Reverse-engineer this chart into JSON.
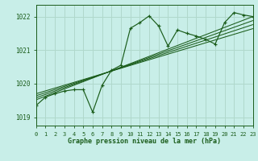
{
  "title": "Graphe pression niveau de la mer (hPa)",
  "bg_color": "#c8eee8",
  "grid_color": "#b0d8cc",
  "line_color": "#1a5c1a",
  "x_min": 0,
  "x_max": 23,
  "y_min": 1018.75,
  "y_max": 1022.35,
  "y_ticks": [
    1019,
    1020,
    1021,
    1022
  ],
  "x_ticks": [
    0,
    1,
    2,
    3,
    4,
    5,
    6,
    7,
    8,
    9,
    10,
    11,
    12,
    13,
    14,
    15,
    16,
    17,
    18,
    19,
    20,
    21,
    22,
    23
  ],
  "main_series": [
    [
      0,
      1019.35
    ],
    [
      1,
      1019.6
    ],
    [
      2,
      1019.7
    ],
    [
      3,
      1019.78
    ],
    [
      4,
      1019.82
    ],
    [
      5,
      1019.82
    ],
    [
      6,
      1019.15
    ],
    [
      7,
      1019.95
    ],
    [
      8,
      1020.4
    ],
    [
      9,
      1020.55
    ],
    [
      10,
      1021.65
    ],
    [
      11,
      1021.82
    ],
    [
      12,
      1022.02
    ],
    [
      13,
      1021.72
    ],
    [
      14,
      1021.12
    ],
    [
      15,
      1021.6
    ],
    [
      16,
      1021.5
    ],
    [
      17,
      1021.42
    ],
    [
      18,
      1021.32
    ],
    [
      19,
      1021.18
    ],
    [
      20,
      1021.82
    ],
    [
      21,
      1022.12
    ],
    [
      22,
      1022.05
    ],
    [
      23,
      1022.0
    ]
  ],
  "trend_lines": [
    [
      [
        0,
        1019.52
      ],
      [
        23,
        1022.0
      ]
    ],
    [
      [
        0,
        1019.58
      ],
      [
        23,
        1021.88
      ]
    ],
    [
      [
        0,
        1019.64
      ],
      [
        23,
        1021.76
      ]
    ],
    [
      [
        0,
        1019.7
      ],
      [
        23,
        1021.64
      ]
    ]
  ]
}
